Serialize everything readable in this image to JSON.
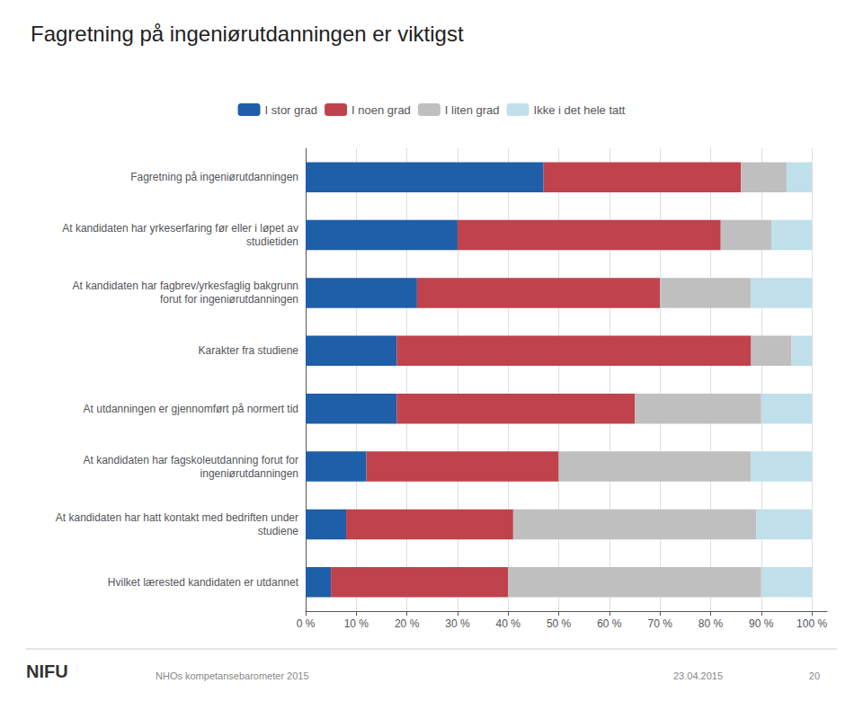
{
  "chart_data": {
    "type": "bar",
    "title": "Fagretning på ingeniørutdanningen er viktigst",
    "orientation": "horizontal",
    "stacked": true,
    "grid": true,
    "legend": "top",
    "categories": [
      "Fagretning på ingeniørutdanningen",
      "At kandidaten har yrkeserfaring før eller i løpet av\nstudietiden",
      "At kandidaten har fagbrev/yrkesfaglig bakgrunn\nforut for ingeniørutdanningen",
      "Karakter fra studiene",
      "At utdanningen er gjennomført på normert tid",
      "At kandidaten har fagskoleutdanning forut for\ningeniørutdanningen",
      "At kandidaten har hatt kontakt med bedriften under\nstudiene",
      "Hvilket lærested kandidaten er utdannet"
    ],
    "series": [
      {
        "name": "I stor grad",
        "color": "#1F5EA8",
        "values": [
          47,
          30,
          22,
          18,
          18,
          12,
          8,
          5
        ]
      },
      {
        "name": "I noen grad",
        "color": "#C0424D",
        "values": [
          39,
          52,
          48,
          70,
          47,
          38,
          33,
          35
        ]
      },
      {
        "name": "I liten grad",
        "color": "#C0BFC0",
        "values": [
          9,
          10,
          18,
          8,
          25,
          38,
          48,
          50
        ]
      },
      {
        "name": "Ikke i det hele tatt",
        "color": "#BFE0EA",
        "values": [
          5,
          8,
          12,
          4,
          10,
          12,
          11,
          10
        ]
      }
    ],
    "xlim": [
      0,
      103
    ],
    "xticks": [
      {
        "value": 0,
        "label": "0 %"
      },
      {
        "value": 10,
        "label": "10 %"
      },
      {
        "value": 20,
        "label": "20 %"
      },
      {
        "value": 30,
        "label": "30 %"
      },
      {
        "value": 40,
        "label": "40 %"
      },
      {
        "value": 50,
        "label": "50 %"
      },
      {
        "value": 60,
        "label": "60 %"
      },
      {
        "value": 70,
        "label": "70 %"
      },
      {
        "value": 80,
        "label": "80 %"
      },
      {
        "value": 90,
        "label": "90 %"
      },
      {
        "value": 100,
        "label": "100 %"
      }
    ],
    "annotations": [
      "NIFU",
      "NHOs kompetansebarometer 2015",
      "23.04.2015",
      "20"
    ]
  }
}
